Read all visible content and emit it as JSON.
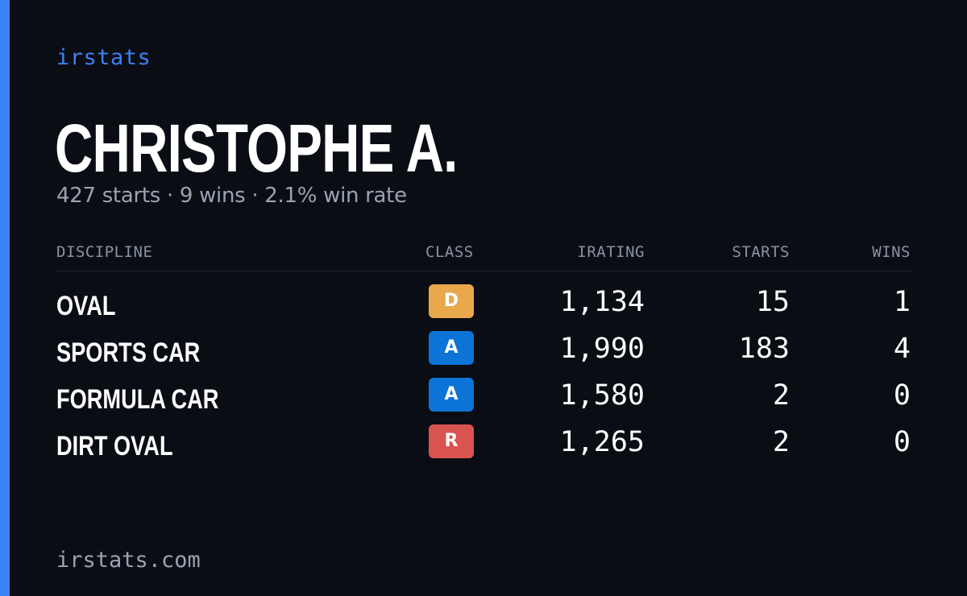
{
  "brand": "irstats",
  "player": {
    "name": "CHRISTOPHE A.",
    "summary": "427 starts · 9 wins · 2.1% win rate"
  },
  "table": {
    "headers": {
      "discipline": "DISCIPLINE",
      "class": "CLASS",
      "irating": "IRATING",
      "starts": "STARTS",
      "wins": "WINS"
    },
    "rows": [
      {
        "discipline": "OVAL",
        "class": "D",
        "class_color": "#e9a84c",
        "irating": "1,134",
        "starts": "15",
        "wins": "1"
      },
      {
        "discipline": "SPORTS CAR",
        "class": "A",
        "class_color": "#0b74d6",
        "irating": "1,990",
        "starts": "183",
        "wins": "4"
      },
      {
        "discipline": "FORMULA CAR",
        "class": "A",
        "class_color": "#0b74d6",
        "irating": "1,580",
        "starts": "2",
        "wins": "0"
      },
      {
        "discipline": "DIRT OVAL",
        "class": "R",
        "class_color": "#d9534f",
        "irating": "1,265",
        "starts": "2",
        "wins": "0"
      }
    ]
  },
  "footer": "irstats.com",
  "colors": {
    "accent": "#3b82f6",
    "background": "#0a0d14"
  }
}
